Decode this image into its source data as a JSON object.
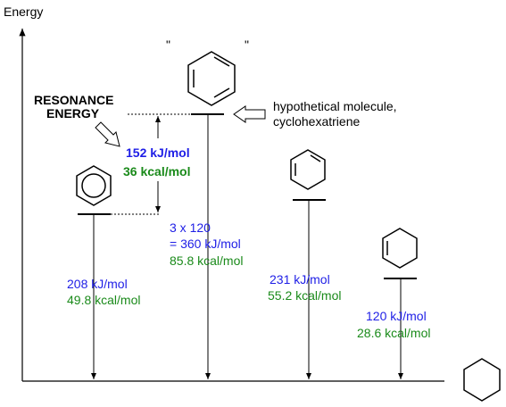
{
  "axis": {
    "label": "Energy"
  },
  "resonance": {
    "label": [
      "RESONANCE",
      "ENERGY"
    ],
    "kj": "152 kJ/mol",
    "kcal": "36 kcal/mol"
  },
  "hypothetical": {
    "quote_left": "\"",
    "quote_right": "\"",
    "note": [
      "hypothetical molecule,",
      "cyclohexatriene"
    ],
    "kj": [
      "3 x 120",
      "= 360 kJ/mol"
    ],
    "kcal": "85.8 kcal/mol"
  },
  "levels": [
    {
      "kj": "208 kJ/mol",
      "kcal": "49.8 kcal/mol"
    },
    {
      "kj": "231 kJ/mol",
      "kcal": "55.2 kcal/mol"
    },
    {
      "kj": "120 kJ/mol",
      "kcal": "28.6 kcal/mol"
    }
  ]
}
